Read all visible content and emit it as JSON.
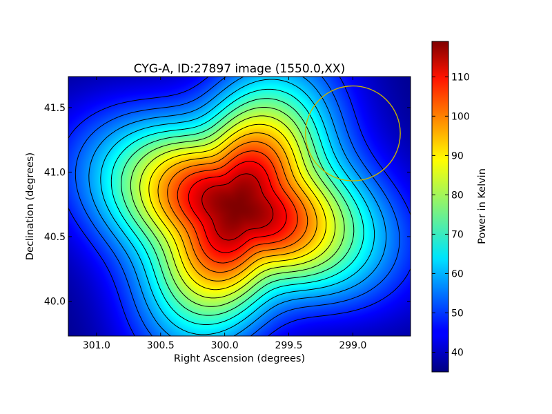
{
  "chart_data": {
    "type": "heatmap",
    "title": "CYG-A, ID:27897 image (1550.0,XX)",
    "xlabel": "Right Ascension (degrees)",
    "ylabel": "Declination (degrees)",
    "xlim": [
      301.22,
      298.55
    ],
    "ylim": [
      39.73,
      41.74
    ],
    "x_inverted": true,
    "x_ticks": [
      301.0,
      300.5,
      300.0,
      299.5,
      299.0
    ],
    "x_tick_labels": [
      "301.0",
      "300.5",
      "300.0",
      "299.5",
      "299.0"
    ],
    "y_ticks": [
      40.0,
      40.5,
      41.0,
      41.5
    ],
    "y_tick_labels": [
      "40.0",
      "40.5",
      "41.0",
      "41.5"
    ],
    "colormap": "jet",
    "grid": false,
    "colorbar": {
      "label": "Power in Kelvin",
      "range": [
        35,
        119
      ],
      "ticks": [
        40,
        50,
        60,
        70,
        80,
        90,
        100,
        110
      ],
      "tick_labels": [
        "40",
        "50",
        "60",
        "70",
        "80",
        "90",
        "100",
        "110"
      ]
    },
    "peak": {
      "ra": 299.9,
      "dec": 40.73,
      "value": 119
    },
    "background_value": 35,
    "contours": {
      "color": "#000000",
      "levels": [
        48,
        53,
        58,
        63,
        68,
        73,
        78,
        83,
        88,
        93,
        98,
        103,
        108,
        113
      ]
    },
    "annotation_circle": {
      "ra": 299.0,
      "dec": 41.3,
      "radius_deg": 0.37,
      "color": "#c8b400"
    }
  }
}
